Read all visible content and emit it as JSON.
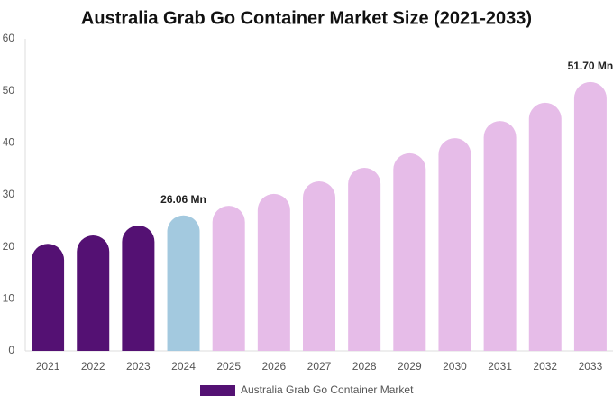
{
  "chart_data": {
    "type": "bar",
    "title": "Australia Grab Go Container Market Size (2021-2033)",
    "categories": [
      "2021",
      "2022",
      "2023",
      "2024",
      "2025",
      "2026",
      "2027",
      "2028",
      "2029",
      "2030",
      "2031",
      "2032",
      "2033"
    ],
    "series": [
      {
        "name": "Australia Grab Go Container Market",
        "color": "#541173",
        "values": [
          20.6,
          22.2,
          24.1,
          26.06,
          27.9,
          30.2,
          32.6,
          35.2,
          38.0,
          40.9,
          44.2,
          47.7,
          51.7
        ],
        "value_labels": [
          null,
          null,
          null,
          "26.06 Mn",
          null,
          null,
          null,
          null,
          null,
          null,
          null,
          null,
          "51.70 Mn"
        ],
        "colors": [
          "#541173",
          "#541173",
          "#541173",
          "#a3c9df",
          "#e6bce8",
          "#e6bce8",
          "#e6bce8",
          "#e6bce8",
          "#e6bce8",
          "#e6bce8",
          "#e6bce8",
          "#e6bce8",
          "#e6bce8"
        ]
      }
    ],
    "ylim": [
      0,
      60
    ],
    "yticks": [
      0,
      10,
      20,
      30,
      40,
      50,
      60
    ],
    "grid": false,
    "legend": "bottom"
  }
}
